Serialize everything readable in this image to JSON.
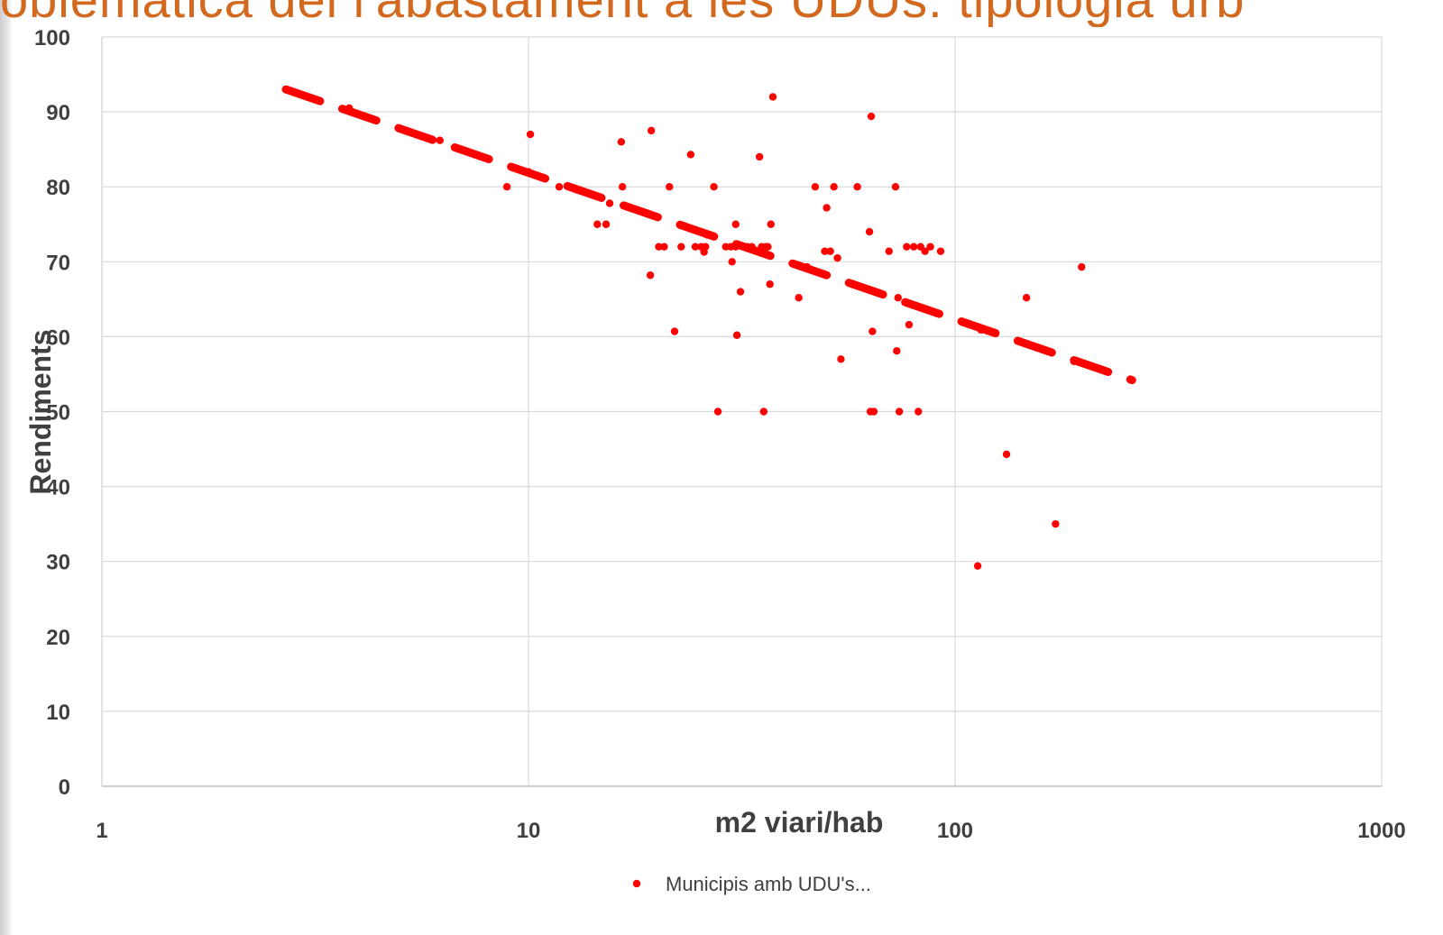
{
  "page": {
    "title_fragment": "oblemàtica del l'abastament a les UDUs: tipologia urb"
  },
  "colors": {
    "series": "#ff0000",
    "trendline": "#ff0000",
    "grid": "#d9d9d9",
    "text": "#404040",
    "title": "#d2691e"
  },
  "chart_data": {
    "type": "scatter",
    "x_scale": "log",
    "xlabel": "m2 viari/hab",
    "ylabel": "Rendiments",
    "xlim": [
      1,
      1000
    ],
    "ylim": [
      0,
      100
    ],
    "x_ticks": [
      "1",
      "10",
      "100",
      "1000"
    ],
    "y_ticks": [
      "0",
      "10",
      "20",
      "30",
      "40",
      "50",
      "60",
      "70",
      "80",
      "90",
      "100"
    ],
    "grid": true,
    "legend_position": "bottom",
    "series": [
      {
        "name": "Municipis amb UDU's...",
        "points": [
          [
            3.8,
            90.5
          ],
          [
            6.2,
            86.2
          ],
          [
            8.9,
            80
          ],
          [
            10.0,
            82
          ],
          [
            10.1,
            87
          ],
          [
            11.8,
            80
          ],
          [
            14.5,
            75
          ],
          [
            15.2,
            75
          ],
          [
            15.5,
            77.8
          ],
          [
            16.5,
            86
          ],
          [
            16.6,
            80
          ],
          [
            19.4,
            87.5
          ],
          [
            19.3,
            68.2
          ],
          [
            20.2,
            72
          ],
          [
            20.8,
            72
          ],
          [
            21.4,
            80
          ],
          [
            22.0,
            60.7
          ],
          [
            22.8,
            72
          ],
          [
            24.0,
            84.3
          ],
          [
            24.6,
            72
          ],
          [
            25.4,
            72
          ],
          [
            25.8,
            71.3
          ],
          [
            26.0,
            72
          ],
          [
            26.2,
            73.6
          ],
          [
            27.2,
            80
          ],
          [
            27.8,
            50
          ],
          [
            29.0,
            72
          ],
          [
            29.8,
            72
          ],
          [
            30.0,
            70
          ],
          [
            30.6,
            72
          ],
          [
            30.6,
            75
          ],
          [
            30.8,
            60.2
          ],
          [
            31.4,
            66
          ],
          [
            32.6,
            72
          ],
          [
            33.4,
            72
          ],
          [
            34.8,
            84
          ],
          [
            35.2,
            72
          ],
          [
            35.6,
            50
          ],
          [
            36.0,
            72
          ],
          [
            36.4,
            72
          ],
          [
            36.8,
            67
          ],
          [
            37.0,
            75
          ],
          [
            37.4,
            92
          ],
          [
            43.0,
            65.2
          ],
          [
            45.0,
            69.3
          ],
          [
            47.0,
            80
          ],
          [
            49.5,
            71.4
          ],
          [
            50.0,
            77.2
          ],
          [
            51.0,
            71.4
          ],
          [
            52.0,
            80
          ],
          [
            53.0,
            70.5
          ],
          [
            54.0,
            57
          ],
          [
            59.0,
            80
          ],
          [
            63.0,
            74
          ],
          [
            63.3,
            50
          ],
          [
            63.6,
            89.4
          ],
          [
            64.0,
            60.7
          ],
          [
            64.5,
            50
          ],
          [
            70.0,
            71.4
          ],
          [
            72.5,
            80
          ],
          [
            73.0,
            58.1
          ],
          [
            73.5,
            65.2
          ],
          [
            74.0,
            50
          ],
          [
            77.0,
            72
          ],
          [
            78.0,
            61.6
          ],
          [
            80.0,
            72
          ],
          [
            82.0,
            50
          ],
          [
            83.0,
            72
          ],
          [
            85.0,
            71.4
          ],
          [
            87.5,
            72
          ],
          [
            92.5,
            71.4
          ],
          [
            113.0,
            29.4
          ],
          [
            115.0,
            60.9
          ],
          [
            132.0,
            44.3
          ],
          [
            147.0,
            65.2
          ],
          [
            172.0,
            35
          ],
          [
            190.0,
            56.7
          ],
          [
            198.0,
            69.3
          ]
        ]
      }
    ],
    "trendline": {
      "type": "log",
      "style": "dashed",
      "x_range": [
        2.7,
        260
      ],
      "y_start": 93,
      "y_end": 54.2
    }
  },
  "legend": {
    "label": "Municipis amb UDU's..."
  }
}
